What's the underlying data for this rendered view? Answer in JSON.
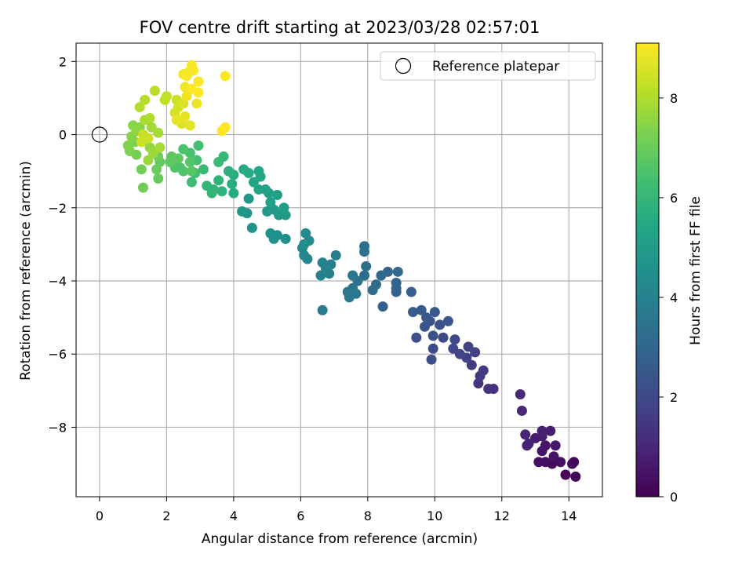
{
  "chart_data": {
    "type": "scatter",
    "title": "FOV centre drift starting at 2023/03/28 02:57:01",
    "xlabel": "Angular distance from reference (arcmin)",
    "ylabel": "Rotation from reference (arcmin)",
    "xlim": [
      -0.7,
      15.0
    ],
    "ylim": [
      -9.9,
      2.5
    ],
    "xticks": [
      0,
      2,
      4,
      6,
      8,
      10,
      12,
      14
    ],
    "yticks": [
      2,
      0,
      -2,
      -4,
      -6,
      -8
    ],
    "xtick_labels": [
      "0",
      "2",
      "4",
      "6",
      "8",
      "10",
      "12",
      "14"
    ],
    "ytick_labels": [
      "2",
      "0",
      "−2",
      "−4",
      "−6",
      "−8"
    ],
    "grid": true,
    "legend": {
      "position": "top-right",
      "label": "Reference platepar"
    },
    "reference_point": {
      "x": 0,
      "y": 0
    },
    "colorbar": {
      "label": "Hours from first FF file",
      "colormap": "viridis",
      "range": [
        0,
        9.1
      ],
      "ticks": [
        0,
        2,
        4,
        6,
        8
      ],
      "tick_labels": [
        "0",
        "2",
        "4",
        "6",
        "8"
      ]
    },
    "points": [
      {
        "x": 14.2,
        "y": -9.35,
        "h": 0.05
      },
      {
        "x": 13.9,
        "y": -9.3,
        "h": 0.1
      },
      {
        "x": 14.15,
        "y": -8.95,
        "h": 0.15
      },
      {
        "x": 14.1,
        "y": -9.0,
        "h": 0.2
      },
      {
        "x": 13.5,
        "y": -9.0,
        "h": 0.25
      },
      {
        "x": 13.3,
        "y": -8.95,
        "h": 0.3
      },
      {
        "x": 13.1,
        "y": -8.95,
        "h": 0.35
      },
      {
        "x": 13.75,
        "y": -8.95,
        "h": 0.4
      },
      {
        "x": 13.55,
        "y": -8.8,
        "h": 0.45
      },
      {
        "x": 13.2,
        "y": -8.65,
        "h": 0.5
      },
      {
        "x": 13.3,
        "y": -8.5,
        "h": 0.55
      },
      {
        "x": 13.6,
        "y": -8.5,
        "h": 0.6
      },
      {
        "x": 13.0,
        "y": -8.3,
        "h": 0.65
      },
      {
        "x": 13.2,
        "y": -8.25,
        "h": 0.7
      },
      {
        "x": 13.45,
        "y": -8.1,
        "h": 0.75
      },
      {
        "x": 13.2,
        "y": -8.1,
        "h": 0.8
      },
      {
        "x": 12.8,
        "y": -8.45,
        "h": 0.85
      },
      {
        "x": 12.75,
        "y": -8.5,
        "h": 0.9
      },
      {
        "x": 12.7,
        "y": -8.2,
        "h": 0.95
      },
      {
        "x": 12.6,
        "y": -7.55,
        "h": 1.05
      },
      {
        "x": 12.55,
        "y": -7.1,
        "h": 1.1
      },
      {
        "x": 11.75,
        "y": -6.95,
        "h": 1.3
      },
      {
        "x": 11.6,
        "y": -6.95,
        "h": 1.35
      },
      {
        "x": 11.3,
        "y": -6.8,
        "h": 1.4
      },
      {
        "x": 11.45,
        "y": -6.45,
        "h": 1.5
      },
      {
        "x": 11.35,
        "y": -6.6,
        "h": 1.55
      },
      {
        "x": 11.1,
        "y": -6.3,
        "h": 1.6
      },
      {
        "x": 11.2,
        "y": -5.95,
        "h": 1.7
      },
      {
        "x": 10.95,
        "y": -6.1,
        "h": 1.75
      },
      {
        "x": 11.0,
        "y": -5.8,
        "h": 1.8
      },
      {
        "x": 10.75,
        "y": -6.0,
        "h": 1.85
      },
      {
        "x": 10.55,
        "y": -5.85,
        "h": 1.9
      },
      {
        "x": 10.6,
        "y": -5.6,
        "h": 2.0
      },
      {
        "x": 10.25,
        "y": -5.55,
        "h": 2.05
      },
      {
        "x": 9.95,
        "y": -5.85,
        "h": 2.1
      },
      {
        "x": 9.9,
        "y": -6.15,
        "h": 2.15
      },
      {
        "x": 9.45,
        "y": -5.55,
        "h": 2.2
      },
      {
        "x": 9.95,
        "y": -5.5,
        "h": 2.25
      },
      {
        "x": 10.15,
        "y": -5.2,
        "h": 2.3
      },
      {
        "x": 9.85,
        "y": -5.1,
        "h": 2.35
      },
      {
        "x": 9.7,
        "y": -5.25,
        "h": 2.4
      },
      {
        "x": 10.4,
        "y": -5.1,
        "h": 2.45
      },
      {
        "x": 9.75,
        "y": -5.0,
        "h": 2.5
      },
      {
        "x": 10.0,
        "y": -4.85,
        "h": 2.55
      },
      {
        "x": 9.6,
        "y": -4.8,
        "h": 2.6
      },
      {
        "x": 9.35,
        "y": -4.85,
        "h": 2.65
      },
      {
        "x": 9.3,
        "y": -4.3,
        "h": 2.75
      },
      {
        "x": 8.85,
        "y": -4.3,
        "h": 2.8
      },
      {
        "x": 8.45,
        "y": -4.7,
        "h": 2.85
      },
      {
        "x": 8.85,
        "y": -4.2,
        "h": 2.9
      },
      {
        "x": 8.85,
        "y": -4.05,
        "h": 2.95
      },
      {
        "x": 8.6,
        "y": -3.75,
        "h": 3.0
      },
      {
        "x": 8.9,
        "y": -3.75,
        "h": 3.05
      },
      {
        "x": 8.4,
        "y": -3.85,
        "h": 3.1
      },
      {
        "x": 8.25,
        "y": -4.1,
        "h": 3.15
      },
      {
        "x": 8.15,
        "y": -4.25,
        "h": 3.2
      },
      {
        "x": 7.9,
        "y": -3.85,
        "h": 3.25
      },
      {
        "x": 7.95,
        "y": -3.6,
        "h": 3.3
      },
      {
        "x": 7.9,
        "y": -3.2,
        "h": 3.35
      },
      {
        "x": 7.9,
        "y": -3.05,
        "h": 3.4
      },
      {
        "x": 7.7,
        "y": -4.0,
        "h": 3.45
      },
      {
        "x": 7.55,
        "y": -4.2,
        "h": 3.5
      },
      {
        "x": 7.55,
        "y": -3.85,
        "h": 3.55
      },
      {
        "x": 7.4,
        "y": -4.3,
        "h": 3.6
      },
      {
        "x": 7.45,
        "y": -4.45,
        "h": 3.65
      },
      {
        "x": 7.65,
        "y": -4.35,
        "h": 3.7
      },
      {
        "x": 6.65,
        "y": -4.8,
        "h": 3.75
      },
      {
        "x": 7.05,
        "y": -3.3,
        "h": 3.8
      },
      {
        "x": 6.9,
        "y": -3.55,
        "h": 3.85
      },
      {
        "x": 6.85,
        "y": -3.8,
        "h": 3.9
      },
      {
        "x": 6.6,
        "y": -3.85,
        "h": 3.95
      },
      {
        "x": 6.75,
        "y": -3.65,
        "h": 4.0
      },
      {
        "x": 6.65,
        "y": -3.5,
        "h": 4.05
      },
      {
        "x": 6.2,
        "y": -3.4,
        "h": 4.1
      },
      {
        "x": 6.1,
        "y": -3.3,
        "h": 4.15
      },
      {
        "x": 6.05,
        "y": -3.1,
        "h": 4.2
      },
      {
        "x": 6.25,
        "y": -2.9,
        "h": 4.25
      },
      {
        "x": 6.15,
        "y": -2.7,
        "h": 4.3
      },
      {
        "x": 6.1,
        "y": -3.0,
        "h": 4.35
      },
      {
        "x": 5.55,
        "y": -2.85,
        "h": 4.45
      },
      {
        "x": 5.3,
        "y": -2.75,
        "h": 4.5
      },
      {
        "x": 5.1,
        "y": -2.7,
        "h": 4.55
      },
      {
        "x": 5.2,
        "y": -2.85,
        "h": 4.6
      },
      {
        "x": 4.55,
        "y": -2.55,
        "h": 4.65
      },
      {
        "x": 4.4,
        "y": -2.15,
        "h": 4.7
      },
      {
        "x": 4.25,
        "y": -2.1,
        "h": 4.75
      },
      {
        "x": 4.45,
        "y": -1.75,
        "h": 4.8
      },
      {
        "x": 5.0,
        "y": -2.1,
        "h": 4.85
      },
      {
        "x": 5.2,
        "y": -2.05,
        "h": 4.9
      },
      {
        "x": 5.35,
        "y": -2.2,
        "h": 4.95
      },
      {
        "x": 5.55,
        "y": -2.2,
        "h": 5.0
      },
      {
        "x": 5.5,
        "y": -2.0,
        "h": 5.05
      },
      {
        "x": 5.1,
        "y": -1.85,
        "h": 5.1
      },
      {
        "x": 5.3,
        "y": -1.65,
        "h": 5.15
      },
      {
        "x": 5.05,
        "y": -1.6,
        "h": 5.2
      },
      {
        "x": 4.95,
        "y": -1.5,
        "h": 5.25
      },
      {
        "x": 4.75,
        "y": -1.5,
        "h": 5.3
      },
      {
        "x": 4.6,
        "y": -1.3,
        "h": 5.35
      },
      {
        "x": 4.8,
        "y": -1.15,
        "h": 5.4
      },
      {
        "x": 4.75,
        "y": -1.0,
        "h": 5.45
      },
      {
        "x": 4.45,
        "y": -1.05,
        "h": 5.5
      },
      {
        "x": 4.3,
        "y": -0.95,
        "h": 5.55
      },
      {
        "x": 4.0,
        "y": -1.6,
        "h": 5.6
      },
      {
        "x": 3.95,
        "y": -1.35,
        "h": 5.65
      },
      {
        "x": 4.0,
        "y": -1.1,
        "h": 5.7
      },
      {
        "x": 3.85,
        "y": -1.0,
        "h": 5.75
      },
      {
        "x": 3.65,
        "y": -1.55,
        "h": 5.8
      },
      {
        "x": 3.55,
        "y": -1.25,
        "h": 5.85
      },
      {
        "x": 3.4,
        "y": -1.5,
        "h": 5.9
      },
      {
        "x": 3.35,
        "y": -1.6,
        "h": 5.95
      },
      {
        "x": 3.2,
        "y": -1.4,
        "h": 6.0
      },
      {
        "x": 3.7,
        "y": -0.6,
        "h": 6.05
      },
      {
        "x": 3.55,
        "y": -0.75,
        "h": 6.1
      },
      {
        "x": 3.1,
        "y": -0.95,
        "h": 6.15
      },
      {
        "x": 2.75,
        "y": -1.3,
        "h": 6.2
      },
      {
        "x": 2.85,
        "y": -1.05,
        "h": 6.25
      },
      {
        "x": 2.9,
        "y": -0.7,
        "h": 6.3
      },
      {
        "x": 2.95,
        "y": -0.3,
        "h": 6.35
      },
      {
        "x": 2.7,
        "y": -0.5,
        "h": 6.4
      },
      {
        "x": 2.5,
        "y": -0.4,
        "h": 6.45
      },
      {
        "x": 2.4,
        "y": -0.9,
        "h": 6.5
      },
      {
        "x": 2.5,
        "y": -1.0,
        "h": 6.55
      },
      {
        "x": 2.25,
        "y": -0.9,
        "h": 6.6
      },
      {
        "x": 2.7,
        "y": -0.75,
        "h": 6.65
      },
      {
        "x": 2.75,
        "y": -1.0,
        "h": 6.7
      },
      {
        "x": 2.35,
        "y": -0.65,
        "h": 6.75
      },
      {
        "x": 2.15,
        "y": -0.6,
        "h": 6.8
      },
      {
        "x": 2.1,
        "y": -0.75,
        "h": 6.85
      },
      {
        "x": 1.8,
        "y": -0.75,
        "h": 6.9
      },
      {
        "x": 1.75,
        "y": -1.2,
        "h": 6.95
      },
      {
        "x": 1.7,
        "y": -0.95,
        "h": 7.0
      },
      {
        "x": 1.75,
        "y": -0.6,
        "h": 7.05
      },
      {
        "x": 1.3,
        "y": -1.45,
        "h": 7.1
      },
      {
        "x": 1.25,
        "y": -0.95,
        "h": 7.15
      },
      {
        "x": 1.1,
        "y": -0.55,
        "h": 7.2
      },
      {
        "x": 1.05,
        "y": -0.2,
        "h": 7.25
      },
      {
        "x": 0.9,
        "y": -0.45,
        "h": 7.3
      },
      {
        "x": 0.85,
        "y": -0.3,
        "h": 7.35
      },
      {
        "x": 0.95,
        "y": -0.05,
        "h": 7.4
      },
      {
        "x": 1.0,
        "y": 0.25,
        "h": 7.45
      },
      {
        "x": 1.2,
        "y": 0.2,
        "h": 7.5
      },
      {
        "x": 1.1,
        "y": 0.1,
        "h": 7.55
      },
      {
        "x": 1.35,
        "y": -0.15,
        "h": 7.6
      },
      {
        "x": 1.5,
        "y": -0.35,
        "h": 7.65
      },
      {
        "x": 1.45,
        "y": -0.7,
        "h": 7.7
      },
      {
        "x": 1.6,
        "y": -0.5,
        "h": 7.75
      },
      {
        "x": 1.55,
        "y": 0.2,
        "h": 7.8
      },
      {
        "x": 1.75,
        "y": 0.05,
        "h": 7.85
      },
      {
        "x": 1.8,
        "y": -0.35,
        "h": 7.9
      },
      {
        "x": 1.35,
        "y": 0.4,
        "h": 7.95
      },
      {
        "x": 1.5,
        "y": 0.45,
        "h": 8.0
      },
      {
        "x": 1.2,
        "y": 0.75,
        "h": 8.05
      },
      {
        "x": 1.35,
        "y": 0.95,
        "h": 8.1
      },
      {
        "x": 1.65,
        "y": 1.2,
        "h": 8.15
      },
      {
        "x": 1.95,
        "y": 0.95,
        "h": 8.2
      },
      {
        "x": 2.0,
        "y": 1.05,
        "h": 8.25
      },
      {
        "x": 1.3,
        "y": 0.0,
        "h": 8.3
      },
      {
        "x": 1.45,
        "y": -0.1,
        "h": 8.35
      },
      {
        "x": 1.25,
        "y": -0.2,
        "h": 8.4
      },
      {
        "x": 2.3,
        "y": 0.95,
        "h": 8.45
      },
      {
        "x": 2.35,
        "y": 0.75,
        "h": 8.5
      },
      {
        "x": 2.25,
        "y": 0.6,
        "h": 8.55
      },
      {
        "x": 2.5,
        "y": 0.85,
        "h": 8.6
      },
      {
        "x": 2.45,
        "y": 0.3,
        "h": 8.65
      },
      {
        "x": 2.7,
        "y": 0.25,
        "h": 8.7
      },
      {
        "x": 2.3,
        "y": 0.4,
        "h": 8.75
      },
      {
        "x": 2.55,
        "y": 0.5,
        "h": 8.8
      },
      {
        "x": 2.9,
        "y": 0.85,
        "h": 8.85
      },
      {
        "x": 2.6,
        "y": 1.05,
        "h": 8.9
      },
      {
        "x": 2.55,
        "y": 1.3,
        "h": 8.93
      },
      {
        "x": 2.5,
        "y": 1.65,
        "h": 8.96
      },
      {
        "x": 2.65,
        "y": 1.7,
        "h": 9.0
      },
      {
        "x": 2.75,
        "y": 1.9,
        "h": 9.03
      },
      {
        "x": 2.8,
        "y": 1.75,
        "h": 9.05
      },
      {
        "x": 2.6,
        "y": 1.6,
        "h": 9.06
      },
      {
        "x": 2.95,
        "y": 1.45,
        "h": 9.07
      },
      {
        "x": 2.75,
        "y": 1.25,
        "h": 9.08
      },
      {
        "x": 2.95,
        "y": 1.15,
        "h": 9.09
      },
      {
        "x": 3.75,
        "y": 1.6,
        "h": 9.1
      },
      {
        "x": 3.75,
        "y": 0.2,
        "h": 9.1
      },
      {
        "x": 3.65,
        "y": 0.1,
        "h": 9.1
      }
    ]
  }
}
